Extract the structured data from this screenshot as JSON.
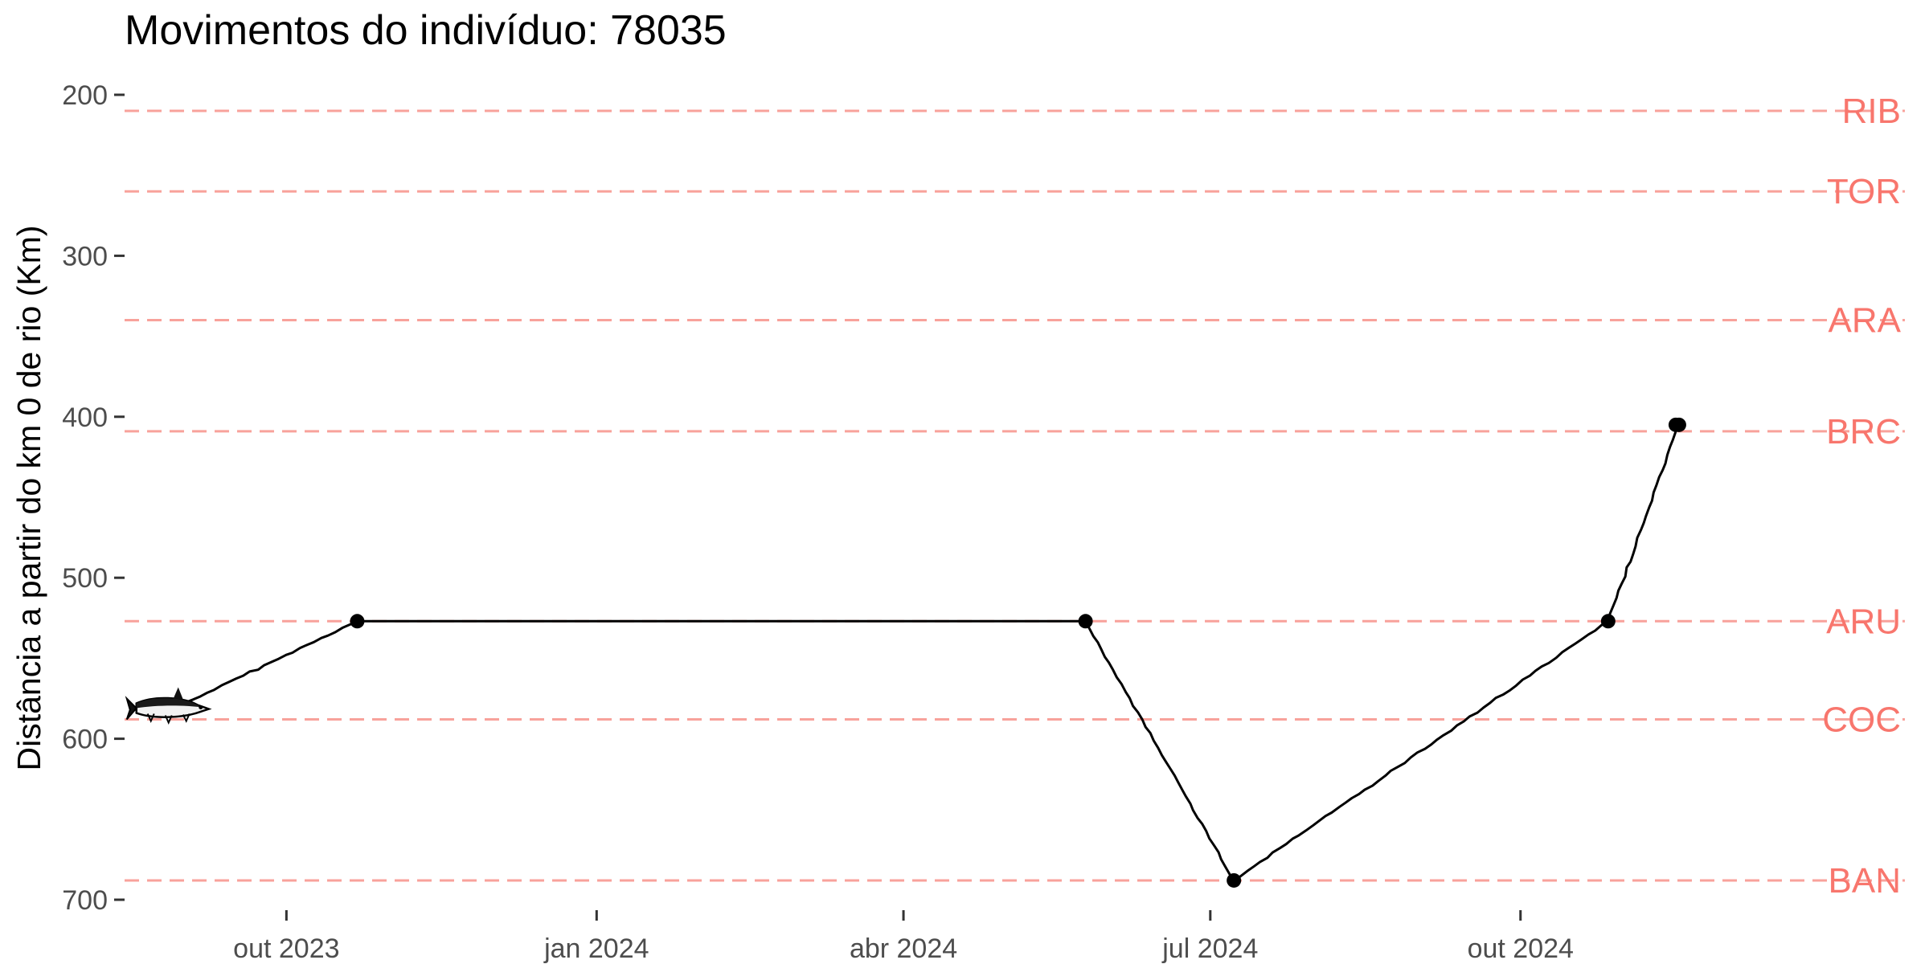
{
  "chart_data": {
    "type": "line",
    "title": "Movimentos do indivíduo: 78035",
    "xlabel": "",
    "ylabel": "Distância a partir do km 0 de rio (Km)",
    "y_reversed": true,
    "ylim": [
      200,
      700
    ],
    "y_ticks": [
      200,
      300,
      400,
      500,
      600,
      700
    ],
    "y_tick_labels": [
      "200",
      "300",
      "400",
      "500",
      "600",
      "700"
    ],
    "x_ticks": [
      "2023-10-01",
      "2024-01-01",
      "2024-04-01",
      "2024-07-01",
      "2024-10-01"
    ],
    "x_tick_labels": [
      "out 2023",
      "jan 2024",
      "abr 2024",
      "jul 2024",
      "out 2024"
    ],
    "xlim": [
      "2023-08-14",
      "2025-01-23"
    ],
    "grid": false,
    "series": [
      {
        "x": [
          "2023-08-28",
          "2023-10-22",
          "2024-05-25",
          "2024-07-08",
          "2024-10-27",
          "2024-11-17"
        ],
        "y": [
          582,
          527,
          527,
          688,
          527,
          405
        ]
      }
    ],
    "start_marker": "fish-icon",
    "reference_lines": [
      {
        "label": "RIB",
        "y": 210
      },
      {
        "label": "TOR",
        "y": 260
      },
      {
        "label": "ARA",
        "y": 340
      },
      {
        "label": "BRC",
        "y": 409
      },
      {
        "label": "ARU",
        "y": 527
      },
      {
        "label": "COC",
        "y": 588
      },
      {
        "label": "BAN",
        "y": 688
      }
    ],
    "colors": {
      "reference_line": "#f8a29b",
      "reference_label": "#f8766d",
      "track": "#000000",
      "points": "#000000",
      "tick": "#333333"
    }
  }
}
